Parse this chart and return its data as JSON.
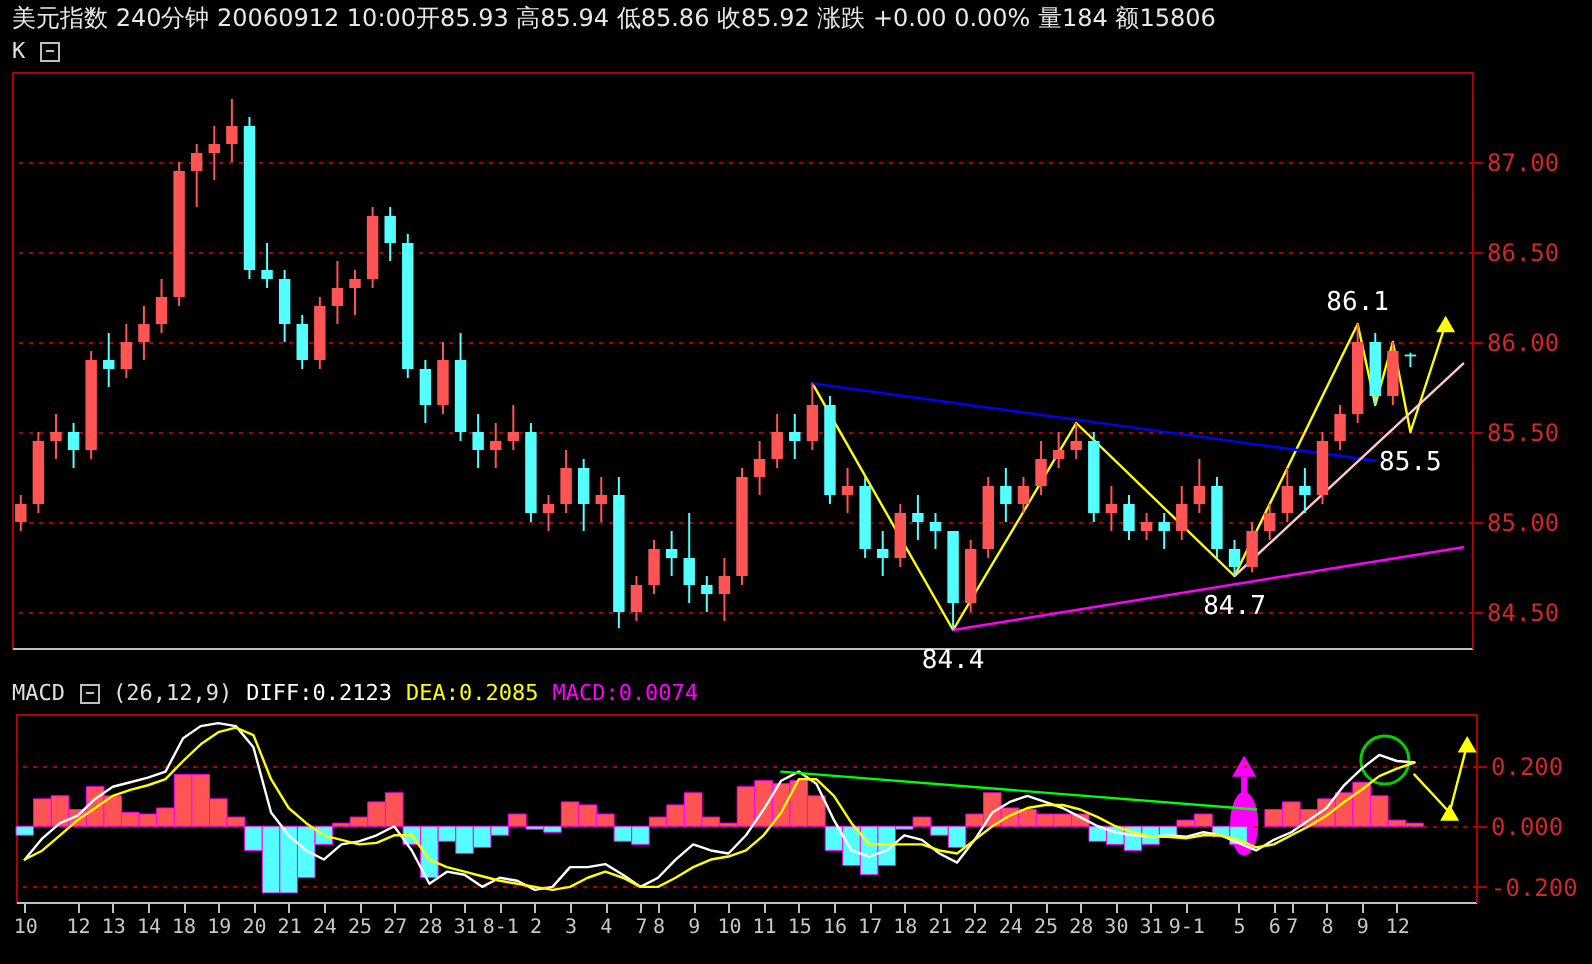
{
  "chart_data": [
    {
      "type": "candlestick",
      "title": "美元指数 240分钟 20060912 10:00开85.93 高85.94 低85.86 收85.92 涨跌 +0.00 0.00% 量184 额15806",
      "subtitle": "K",
      "categories": [
        null,
        null,
        null,
        null,
        null,
        null,
        null,
        null,
        null,
        null,
        null,
        null,
        null,
        null,
        null,
        null,
        null,
        null,
        null,
        null,
        null,
        null,
        null,
        null,
        null,
        null,
        null,
        null,
        null,
        null,
        null,
        null,
        null,
        null,
        null,
        null,
        null,
        null,
        null,
        null,
        null,
        null,
        null,
        null,
        null,
        null,
        null,
        null,
        null,
        null,
        null,
        null,
        null,
        null,
        null,
        null,
        null,
        null,
        null,
        null,
        null,
        null,
        null,
        null,
        null,
        null,
        null,
        null,
        null,
        null,
        null,
        null,
        null,
        null,
        null,
        null,
        null,
        null,
        null,
        null,
        null,
        null,
        null
      ],
      "ohlc": [
        [
          85.0,
          85.15,
          84.95,
          85.1
        ],
        [
          85.1,
          85.5,
          85.05,
          85.45
        ],
        [
          85.45,
          85.6,
          85.35,
          85.5
        ],
        [
          85.5,
          85.55,
          85.3,
          85.4
        ],
        [
          85.4,
          85.95,
          85.35,
          85.9
        ],
        [
          85.9,
          86.05,
          85.75,
          85.85
        ],
        [
          85.85,
          86.1,
          85.8,
          86.0
        ],
        [
          86.0,
          86.2,
          85.9,
          86.1
        ],
        [
          86.1,
          86.35,
          86.05,
          86.25
        ],
        [
          86.25,
          87.0,
          86.2,
          86.95
        ],
        [
          86.95,
          87.1,
          86.75,
          87.05
        ],
        [
          87.05,
          87.2,
          86.9,
          87.1
        ],
        [
          87.1,
          87.35,
          87.0,
          87.2
        ],
        [
          87.2,
          87.25,
          86.35,
          86.4
        ],
        [
          86.4,
          86.55,
          86.3,
          86.35
        ],
        [
          86.35,
          86.4,
          86.0,
          86.1
        ],
        [
          86.1,
          86.15,
          85.85,
          85.9
        ],
        [
          85.9,
          86.25,
          85.85,
          86.2
        ],
        [
          86.2,
          86.45,
          86.1,
          86.3
        ],
        [
          86.3,
          86.4,
          86.15,
          86.35
        ],
        [
          86.35,
          86.75,
          86.3,
          86.7
        ],
        [
          86.7,
          86.75,
          86.45,
          86.55
        ],
        [
          86.55,
          86.6,
          85.8,
          85.85
        ],
        [
          85.85,
          85.9,
          85.55,
          85.65
        ],
        [
          85.65,
          86.0,
          85.6,
          85.9
        ],
        [
          85.9,
          86.05,
          85.45,
          85.5
        ],
        [
          85.5,
          85.6,
          85.3,
          85.4
        ],
        [
          85.4,
          85.55,
          85.3,
          85.45
        ],
        [
          85.45,
          85.65,
          85.4,
          85.5
        ],
        [
          85.5,
          85.55,
          85.0,
          85.05
        ],
        [
          85.05,
          85.15,
          84.95,
          85.1
        ],
        [
          85.1,
          85.4,
          85.05,
          85.3
        ],
        [
          85.3,
          85.35,
          84.95,
          85.1
        ],
        [
          85.1,
          85.25,
          85.0,
          85.15
        ],
        [
          85.15,
          85.25,
          84.41,
          84.5
        ],
        [
          84.5,
          84.7,
          84.45,
          84.65
        ],
        [
          84.65,
          84.9,
          84.6,
          84.85
        ],
        [
          84.85,
          84.95,
          84.7,
          84.8
        ],
        [
          84.8,
          85.05,
          84.55,
          84.65
        ],
        [
          84.65,
          84.7,
          84.5,
          84.6
        ],
        [
          84.6,
          84.8,
          84.45,
          84.7
        ],
        [
          84.7,
          85.3,
          84.65,
          85.25
        ],
        [
          85.25,
          85.45,
          85.15,
          85.35
        ],
        [
          85.35,
          85.6,
          85.3,
          85.5
        ],
        [
          85.5,
          85.6,
          85.35,
          85.45
        ],
        [
          85.45,
          85.77,
          85.4,
          85.65
        ],
        [
          85.65,
          85.7,
          85.1,
          85.15
        ],
        [
          85.15,
          85.3,
          85.05,
          85.2
        ],
        [
          85.2,
          85.25,
          84.8,
          84.85
        ],
        [
          84.85,
          84.95,
          84.7,
          84.8
        ],
        [
          84.8,
          85.1,
          84.75,
          85.05
        ],
        [
          85.05,
          85.15,
          84.9,
          85.0
        ],
        [
          85.0,
          85.05,
          84.85,
          84.95
        ],
        [
          84.95,
          84.95,
          84.4,
          84.55
        ],
        [
          84.55,
          84.9,
          84.5,
          84.85
        ],
        [
          84.85,
          85.25,
          84.8,
          85.2
        ],
        [
          85.2,
          85.3,
          85.0,
          85.1
        ],
        [
          85.1,
          85.25,
          85.05,
          85.2
        ],
        [
          85.2,
          85.45,
          85.15,
          85.35
        ],
        [
          85.35,
          85.5,
          85.3,
          85.4
        ],
        [
          85.4,
          85.55,
          85.35,
          85.45
        ],
        [
          85.45,
          85.5,
          85.0,
          85.05
        ],
        [
          85.05,
          85.2,
          84.95,
          85.1
        ],
        [
          85.1,
          85.15,
          84.9,
          84.95
        ],
        [
          84.95,
          85.05,
          84.9,
          85.0
        ],
        [
          85.0,
          85.05,
          84.85,
          84.95
        ],
        [
          84.95,
          85.2,
          84.9,
          85.1
        ],
        [
          85.1,
          85.35,
          85.05,
          85.2
        ],
        [
          85.2,
          85.25,
          84.8,
          84.85
        ],
        [
          84.85,
          84.9,
          84.7,
          84.75
        ],
        [
          84.75,
          85.0,
          84.72,
          84.95
        ],
        [
          84.95,
          85.1,
          84.9,
          85.05
        ],
        [
          85.05,
          85.3,
          85.0,
          85.2
        ],
        [
          85.2,
          85.3,
          85.05,
          85.15
        ],
        [
          85.15,
          85.5,
          85.1,
          85.45
        ],
        [
          85.45,
          85.65,
          85.4,
          85.6
        ],
        [
          85.6,
          86.1,
          85.55,
          86.0
        ],
        [
          86.0,
          86.05,
          85.65,
          85.7
        ],
        [
          85.7,
          86.0,
          85.65,
          85.95
        ],
        [
          85.93,
          85.94,
          85.86,
          85.92
        ],
        null,
        null,
        null
      ],
      "colors": [
        "#ff5454",
        "#ff5454",
        "#ff5454",
        "#54ffff",
        "#ff5454",
        "#54ffff",
        "#ff5454",
        "#ff5454",
        "#ff5454",
        "#ff5454",
        "#ff5454",
        "#ff5454",
        "#ff5454",
        "#54ffff",
        "#54ffff",
        "#54ffff",
        "#54ffff",
        "#ff5454",
        "#ff5454",
        "#ff5454",
        "#ff5454",
        "#54ffff",
        "#54ffff",
        "#54ffff",
        "#ff5454",
        "#54ffff",
        "#54ffff",
        "#ff5454",
        "#ff5454",
        "#54ffff",
        "#ff5454",
        "#ff5454",
        "#54ffff",
        "#ff5454",
        "#54ffff",
        "#ff5454",
        "#ff5454",
        "#54ffff",
        "#54ffff",
        "#54ffff",
        "#ff5454",
        "#ff5454",
        "#ff5454",
        "#ff5454",
        "#54ffff",
        "#ff5454",
        "#54ffff",
        "#ff5454",
        "#54ffff",
        "#54ffff",
        "#ff5454",
        "#54ffff",
        "#54ffff",
        "#54ffff",
        "#ff5454",
        "#ff5454",
        "#54ffff",
        "#ff5454",
        "#ff5454",
        "#ff5454",
        "#ff5454",
        "#54ffff",
        "#ff5454",
        "#54ffff",
        "#ff5454",
        "#54ffff",
        "#ff5454",
        "#ff5454",
        "#54ffff",
        "#54ffff",
        "#ff5454",
        "#ff5454",
        "#ff5454",
        "#54ffff",
        "#ff5454",
        "#ff5454",
        "#ff5454",
        "#54ffff",
        "#ff5454",
        "#54ffff",
        null,
        null,
        null
      ],
      "ylim": [
        84.3,
        87.5
      ],
      "yticks": [
        {
          "value": 84.5,
          "label": "84.50"
        },
        {
          "value": 85,
          "label": "85.00"
        },
        {
          "value": 85.5,
          "label": "85.50"
        },
        {
          "value": 86,
          "label": "86.00"
        },
        {
          "value": 86.5,
          "label": "86.50"
        },
        {
          "value": 87,
          "label": "87.00"
        }
      ],
      "grid": "y",
      "annotations": [
        {
          "text": "84.4",
          "y": 84.4
        },
        {
          "text": "84.7",
          "y": 84.7
        },
        {
          "text": "86.1",
          "y": 86.1
        },
        {
          "text": "85.5",
          "y": 85.5
        }
      ],
      "series": [
        {
          "type": "line",
          "color": "#ffff00",
          "values": [
            null,
            null,
            null,
            null,
            null,
            null,
            null,
            null,
            null,
            null,
            null,
            null,
            null,
            null,
            null,
            null,
            null,
            null,
            null,
            null,
            null,
            null,
            null,
            null,
            null,
            null,
            null,
            null,
            null,
            null,
            null,
            null,
            null,
            null,
            null,
            null,
            null,
            null,
            null,
            null,
            null,
            null,
            null,
            null,
            null,
            85.77,
            null,
            null,
            null,
            null,
            null,
            null,
            null,
            84.4,
            null,
            null,
            null,
            null,
            null,
            null,
            85.55,
            null,
            null,
            null,
            null,
            null,
            null,
            null,
            null,
            84.7,
            null,
            null,
            null,
            null,
            null,
            null,
            86.1,
            85.65,
            86.0,
            85.5,
            null,
            86.1,
            null
          ]
        },
        {
          "type": "line",
          "color": "#0000ff",
          "values": [
            null,
            null,
            null,
            null,
            null,
            null,
            null,
            null,
            null,
            null,
            null,
            null,
            null,
            null,
            null,
            null,
            null,
            null,
            null,
            null,
            null,
            null,
            null,
            null,
            null,
            null,
            null,
            null,
            null,
            null,
            null,
            null,
            null,
            null,
            null,
            null,
            null,
            null,
            null,
            null,
            null,
            null,
            null,
            null,
            null,
            85.77,
            null,
            null,
            null,
            null,
            null,
            null,
            null,
            null,
            null,
            null,
            null,
            null,
            null,
            null,
            null,
            null,
            null,
            null,
            null,
            null,
            null,
            null,
            null,
            null,
            null,
            null,
            null,
            null,
            null,
            null,
            null,
            85.34,
            null,
            null,
            null,
            null,
            null
          ]
        },
        {
          "type": "line",
          "color": "#ff00ff",
          "values": [
            null,
            null,
            null,
            null,
            null,
            null,
            null,
            null,
            null,
            null,
            null,
            null,
            null,
            null,
            null,
            null,
            null,
            null,
            null,
            null,
            null,
            null,
            null,
            null,
            null,
            null,
            null,
            null,
            null,
            null,
            null,
            null,
            null,
            null,
            null,
            null,
            null,
            null,
            null,
            null,
            null,
            null,
            null,
            null,
            null,
            null,
            null,
            null,
            null,
            null,
            null,
            null,
            null,
            84.4,
            null,
            null,
            null,
            null,
            null,
            null,
            null,
            null,
            null,
            null,
            null,
            null,
            null,
            null,
            null,
            null,
            null,
            null,
            null,
            null,
            null,
            null,
            null,
            null,
            null,
            null,
            null,
            null,
            84.86
          ]
        },
        {
          "type": "line",
          "color": "#ffc8c8",
          "values": [
            null,
            null,
            null,
            null,
            null,
            null,
            null,
            null,
            null,
            null,
            null,
            null,
            null,
            null,
            null,
            null,
            null,
            null,
            null,
            null,
            null,
            null,
            null,
            null,
            null,
            null,
            null,
            null,
            null,
            null,
            null,
            null,
            null,
            null,
            null,
            null,
            null,
            null,
            null,
            null,
            null,
            null,
            null,
            null,
            null,
            null,
            null,
            null,
            null,
            null,
            null,
            null,
            null,
            null,
            null,
            null,
            null,
            null,
            null,
            null,
            null,
            null,
            null,
            null,
            null,
            null,
            null,
            null,
            null,
            84.7,
            null,
            null,
            null,
            null,
            null,
            null,
            null,
            null,
            null,
            null,
            null,
            null,
            85.88
          ]
        },
        {
          "type": "scatter",
          "marker": "triangle",
          "color": "#ffff00",
          "values": [
            null,
            null,
            null,
            null,
            null,
            null,
            null,
            null,
            null,
            null,
            null,
            null,
            null,
            null,
            null,
            null,
            null,
            null,
            null,
            null,
            null,
            null,
            null,
            null,
            null,
            null,
            null,
            null,
            null,
            null,
            null,
            null,
            null,
            null,
            null,
            null,
            null,
            null,
            null,
            null,
            null,
            null,
            null,
            null,
            null,
            null,
            null,
            null,
            null,
            null,
            null,
            null,
            null,
            null,
            null,
            null,
            null,
            null,
            null,
            null,
            null,
            null,
            null,
            null,
            null,
            null,
            null,
            null,
            null,
            null,
            null,
            null,
            null,
            null,
            null,
            null,
            null,
            null,
            null,
            null,
            null,
            86.1,
            null
          ]
        }
      ]
    },
    {
      "type": "bar",
      "title": "MACD",
      "subtitle": "(26,12,9)",
      "categories": [
        "10",
        null,
        null,
        "12",
        null,
        "13",
        null,
        "14",
        null,
        "18",
        null,
        "19",
        null,
        "20",
        null,
        "21",
        null,
        "24",
        null,
        "25",
        null,
        "27",
        null,
        "28",
        null,
        "31",
        null,
        "8-1",
        null,
        "2",
        null,
        "3",
        null,
        "4",
        null,
        "7",
        "8",
        null,
        "9",
        null,
        "10",
        null,
        "11",
        null,
        "15",
        null,
        "16",
        null,
        "17",
        null,
        "18",
        null,
        "21",
        null,
        "22",
        null,
        "24",
        null,
        "25",
        null,
        "28",
        null,
        "30",
        null,
        "31",
        null,
        "9-1",
        null,
        null,
        "5",
        null,
        "6",
        "7",
        null,
        "8",
        null,
        "9",
        null,
        "12",
        null,
        null,
        null,
        null
      ],
      "ylim": [
        -0.25,
        0.37
      ],
      "yticks": [
        {
          "value": -0.2,
          "label": "-0.200"
        },
        {
          "value": 0,
          "label": "0.000"
        },
        {
          "value": 0.2,
          "label": "0.200"
        }
      ],
      "grid": "y",
      "series": [
        {
          "type": "line",
          "name": "DIFF:0.2123",
          "color": "#ffffff",
          "values": [
            -0.11,
            -0.04,
            0.01,
            0.035,
            0.09,
            0.13,
            0.145,
            0.16,
            0.18,
            0.29,
            0.33,
            0.34,
            0.33,
            0.26,
            0.045,
            -0.03,
            -0.08,
            -0.11,
            -0.06,
            -0.05,
            -0.03,
            0.0,
            -0.08,
            -0.19,
            -0.15,
            -0.16,
            -0.2,
            -0.17,
            -0.18,
            -0.21,
            -0.2,
            -0.135,
            -0.135,
            -0.125,
            -0.16,
            -0.2,
            -0.17,
            -0.11,
            -0.06,
            -0.08,
            -0.09,
            -0.03,
            0.055,
            0.15,
            0.18,
            0.14,
            0.02,
            -0.08,
            -0.1,
            -0.08,
            -0.03,
            -0.045,
            -0.09,
            -0.12,
            -0.045,
            0.045,
            0.08,
            0.1,
            0.08,
            0.06,
            0.03,
            0.0,
            -0.02,
            -0.03,
            -0.035,
            -0.03,
            -0.035,
            -0.02,
            -0.03,
            -0.055,
            -0.08,
            -0.045,
            -0.02,
            0.02,
            0.06,
            0.135,
            0.19,
            0.235,
            0.215,
            0.21,
            null,
            null,
            null
          ]
        },
        {
          "type": "line",
          "name": "DEA:0.2085",
          "color": "#ffff00",
          "values": [
            -0.11,
            -0.08,
            -0.03,
            0.02,
            0.06,
            0.1,
            0.12,
            0.135,
            0.155,
            0.215,
            0.27,
            0.31,
            0.325,
            0.3,
            0.155,
            0.06,
            0.01,
            -0.03,
            -0.045,
            -0.06,
            -0.055,
            -0.03,
            -0.03,
            -0.11,
            -0.135,
            -0.15,
            -0.165,
            -0.18,
            -0.19,
            -0.2,
            -0.21,
            -0.2,
            -0.17,
            -0.15,
            -0.17,
            -0.2,
            -0.2,
            -0.17,
            -0.135,
            -0.11,
            -0.1,
            -0.08,
            -0.03,
            0.045,
            0.155,
            0.155,
            0.1,
            0.01,
            -0.06,
            -0.06,
            -0.06,
            -0.06,
            -0.08,
            -0.09,
            -0.045,
            0.0,
            0.035,
            0.06,
            0.07,
            0.07,
            0.055,
            0.03,
            0.0,
            -0.02,
            -0.035,
            -0.035,
            -0.04,
            -0.03,
            -0.03,
            -0.045,
            -0.07,
            -0.06,
            -0.03,
            0.0,
            0.035,
            0.08,
            0.12,
            0.165,
            0.19,
            0.21,
            null,
            null,
            null
          ]
        },
        {
          "type": "bar",
          "name": "MACD:0.0074",
          "color": "#ff00ff",
          "values": [
            -0.03,
            0.09,
            0.1,
            0.055,
            0.13,
            0.1,
            0.045,
            0.04,
            0.06,
            0.17,
            0.17,
            0.09,
            0.03,
            -0.08,
            -0.22,
            -0.22,
            -0.17,
            -0.06,
            0.01,
            0.03,
            0.08,
            0.11,
            -0.06,
            -0.17,
            -0.05,
            -0.09,
            -0.07,
            -0.03,
            0.04,
            -0.01,
            -0.02,
            0.08,
            0.07,
            0.04,
            -0.05,
            -0.06,
            0.03,
            0.07,
            0.11,
            0.03,
            0.01,
            0.13,
            0.15,
            0.14,
            0.15,
            0.1,
            -0.08,
            -0.13,
            -0.16,
            -0.13,
            -0.01,
            0.03,
            -0.03,
            -0.07,
            0.04,
            0.11,
            0.06,
            0.055,
            0.04,
            0.04,
            0.04,
            -0.05,
            -0.06,
            -0.08,
            -0.06,
            -0.035,
            0.02,
            0.04,
            -0.035,
            -0.06,
            null,
            0.055,
            0.08,
            0.055,
            0.09,
            0.11,
            0.145,
            0.1,
            0.02,
            0.01,
            null,
            null,
            null
          ],
          "colors": [
            "#54ffff",
            "#ff5454",
            "#ff5454",
            "#ff5454",
            "#ff5454",
            "#ff5454",
            "#ff5454",
            "#ff5454",
            "#ff5454",
            "#ff5454",
            "#ff5454",
            "#ff5454",
            "#ff5454",
            "#54ffff",
            "#54ffff",
            "#54ffff",
            "#54ffff",
            "#54ffff",
            "#ff5454",
            "#ff5454",
            "#ff5454",
            "#ff5454",
            "#54ffff",
            "#54ffff",
            "#54ffff",
            "#54ffff",
            "#54ffff",
            "#54ffff",
            "#ff5454",
            "#54ffff",
            "#54ffff",
            "#ff5454",
            "#ff5454",
            "#ff5454",
            "#54ffff",
            "#54ffff",
            "#ff5454",
            "#ff5454",
            "#ff5454",
            "#ff5454",
            "#ff5454",
            "#ff5454",
            "#ff5454",
            "#ff5454",
            "#ff5454",
            "#ff5454",
            "#54ffff",
            "#54ffff",
            "#54ffff",
            "#54ffff",
            "#54ffff",
            "#ff5454",
            "#54ffff",
            "#54ffff",
            "#ff5454",
            "#ff5454",
            "#ff5454",
            "#ff5454",
            "#ff5454",
            "#ff5454",
            "#ff5454",
            "#54ffff",
            "#54ffff",
            "#54ffff",
            "#54ffff",
            "#54ffff",
            "#ff5454",
            "#ff5454",
            "#54ffff",
            "#54ffff",
            null,
            "#ff5454",
            "#ff5454",
            "#ff5454",
            "#ff5454",
            "#ff5454",
            "#ff5454",
            "#ff5454",
            "#ff5454",
            "#ff5454",
            null,
            null,
            null
          ]
        },
        {
          "type": "line",
          "color": "#00ff00",
          "values": [
            null,
            null,
            null,
            null,
            null,
            null,
            null,
            null,
            null,
            null,
            null,
            null,
            null,
            null,
            null,
            null,
            null,
            null,
            null,
            null,
            null,
            null,
            null,
            null,
            null,
            null,
            null,
            null,
            null,
            null,
            null,
            null,
            null,
            null,
            null,
            null,
            null,
            null,
            null,
            null,
            null,
            null,
            null,
            0.18,
            null,
            null,
            null,
            null,
            null,
            null,
            null,
            null,
            null,
            null,
            null,
            null,
            null,
            null,
            null,
            null,
            null,
            null,
            null,
            null,
            null,
            null,
            null,
            null,
            null,
            null,
            0.055,
            null,
            null,
            null,
            null,
            null,
            null,
            null,
            null,
            null,
            null,
            null,
            null
          ]
        },
        {
          "type": "line",
          "color": "#ffff00",
          "values": [
            null,
            null,
            null,
            null,
            null,
            null,
            null,
            null,
            null,
            null,
            null,
            null,
            null,
            null,
            null,
            null,
            null,
            null,
            null,
            null,
            null,
            null,
            null,
            null,
            null,
            null,
            null,
            null,
            null,
            null,
            null,
            null,
            null,
            null,
            null,
            null,
            null,
            null,
            null,
            null,
            null,
            null,
            null,
            null,
            null,
            null,
            null,
            null,
            null,
            null,
            null,
            null,
            null,
            null,
            null,
            null,
            null,
            null,
            null,
            null,
            null,
            null,
            null,
            null,
            null,
            null,
            null,
            null,
            null,
            null,
            null,
            null,
            null,
            null,
            null,
            null,
            null,
            null,
            null,
            0.17,
            null,
            0.045,
            0.27
          ]
        },
        {
          "type": "scatter",
          "marker": "triangle",
          "color": "#ffff00",
          "values": [
            null,
            null,
            null,
            null,
            null,
            null,
            null,
            null,
            null,
            null,
            null,
            null,
            null,
            null,
            null,
            null,
            null,
            null,
            null,
            null,
            null,
            null,
            null,
            null,
            null,
            null,
            null,
            null,
            null,
            null,
            null,
            null,
            null,
            null,
            null,
            null,
            null,
            null,
            null,
            null,
            null,
            null,
            null,
            null,
            null,
            null,
            null,
            null,
            null,
            null,
            null,
            null,
            null,
            null,
            null,
            null,
            null,
            null,
            null,
            null,
            null,
            null,
            null,
            null,
            null,
            null,
            null,
            null,
            null,
            null,
            null,
            null,
            null,
            null,
            null,
            null,
            null,
            null,
            null,
            null,
            null,
            0.045,
            0.27
          ]
        }
      ]
    }
  ]
}
